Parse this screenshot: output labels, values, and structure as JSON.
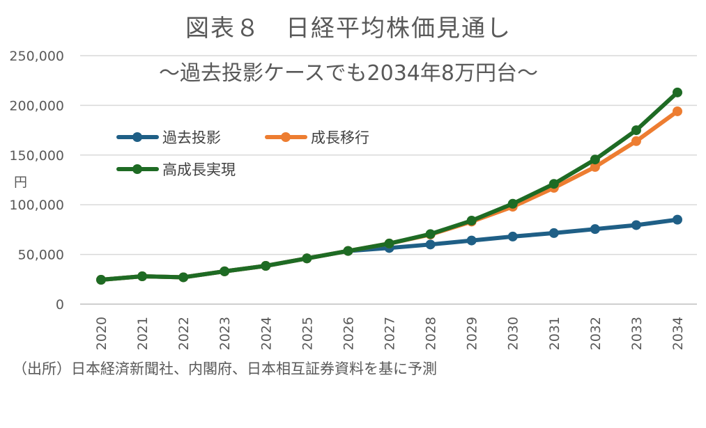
{
  "chart_data": {
    "type": "line",
    "title": "図表８　日経平均株価見通し",
    "subtitle": "～過去投影ケースでも2034年8万円台～",
    "ylabel": "円",
    "xlabel": "",
    "ylim": [
      0,
      250000
    ],
    "yticks": [
      "250,000",
      "200,000",
      "150,000",
      "100,000",
      "50,000",
      "0"
    ],
    "ytick_values": [
      250000,
      200000,
      150000,
      100000,
      50000,
      0
    ],
    "x": [
      "2020",
      "2021",
      "2022",
      "2023",
      "2024",
      "2025",
      "2026",
      "2027",
      "2028",
      "2029",
      "2030",
      "2031",
      "2032",
      "2033",
      "2034"
    ],
    "grid": true,
    "legend_placement": "top-left",
    "series": [
      {
        "name": "過去投影",
        "color": "#1F5F86",
        "values": [
          24500,
          28000,
          27000,
          33000,
          38500,
          46000,
          53500,
          56500,
          60000,
          64000,
          68000,
          71500,
          75500,
          79500,
          85000
        ]
      },
      {
        "name": "成長移行",
        "color": "#ED7D31",
        "values": [
          24500,
          28000,
          27000,
          33000,
          38500,
          46000,
          53500,
          61000,
          70000,
          83000,
          98000,
          117000,
          138000,
          164000,
          194000
        ]
      },
      {
        "name": "高成長実現",
        "color": "#1E6B24",
        "values": [
          24500,
          28000,
          27000,
          33000,
          38500,
          46000,
          53500,
          61000,
          70500,
          84000,
          101000,
          121000,
          145500,
          175000,
          213000
        ]
      }
    ]
  },
  "source_text": "（出所）日本経済新聞社、内閣府、日本相互証券資料を基に予測"
}
